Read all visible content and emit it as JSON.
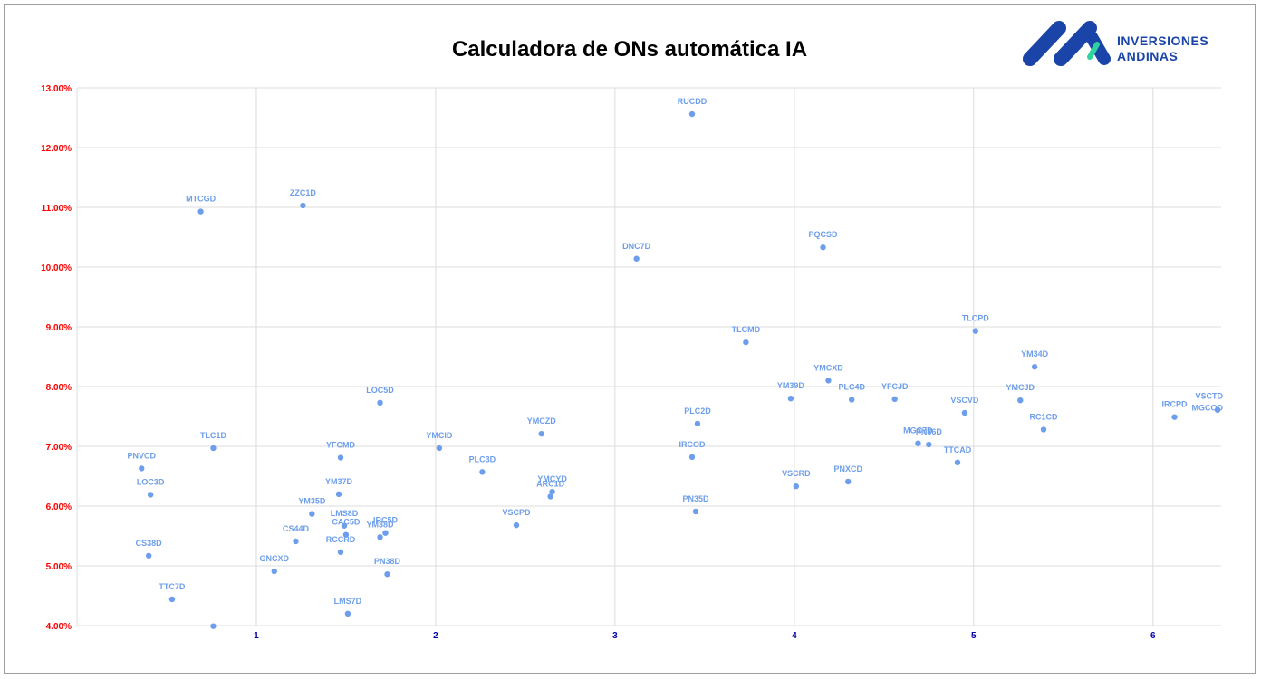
{
  "brand": {
    "line1": "INVERSIONES",
    "line2": "ANDINAS",
    "primary_color": "#1a44a8",
    "accent_color": "#2ed3a0",
    "logo_icon": "inversiones-andinas-logo-icon"
  },
  "colors": {
    "point": "#6d9eeb",
    "label": "#6d9eeb",
    "ytick": "#ff0000",
    "xtick": "#0000aa",
    "grid": "#dcdcdc"
  },
  "chart_data": {
    "type": "scatter",
    "title": "Calculadora de ONs automática IA",
    "xlabel": "",
    "ylabel": "",
    "xlim": [
      0,
      6.38
    ],
    "ylim": [
      0.04,
      0.13
    ],
    "grid": true,
    "legend": "none",
    "x_ticks": [
      {
        "value": 1,
        "label": "1"
      },
      {
        "value": 2,
        "label": "2"
      },
      {
        "value": 3,
        "label": "3"
      },
      {
        "value": 4,
        "label": "4"
      },
      {
        "value": 5,
        "label": "5"
      },
      {
        "value": 6,
        "label": "6"
      }
    ],
    "y_ticks": [
      {
        "value": 0.04,
        "label": "4.00%"
      },
      {
        "value": 0.05,
        "label": "5.00%"
      },
      {
        "value": 0.06,
        "label": "6.00%"
      },
      {
        "value": 0.07,
        "label": "7.00%"
      },
      {
        "value": 0.08,
        "label": "8.00%"
      },
      {
        "value": 0.09,
        "label": "9.00%"
      },
      {
        "value": 0.1,
        "label": "10.00%"
      },
      {
        "value": 0.11,
        "label": "11.00%"
      },
      {
        "value": 0.12,
        "label": "12.00%"
      },
      {
        "value": 0.13,
        "label": "13.00%"
      }
    ],
    "points": [
      {
        "label": "RUCDD",
        "x": 3.43,
        "y": 0.1256
      },
      {
        "label": "MTCGD",
        "x": 0.69,
        "y": 0.1093
      },
      {
        "label": "ZZC1D",
        "x": 1.26,
        "y": 0.1103
      },
      {
        "label": "DNC7D",
        "x": 3.12,
        "y": 0.1014
      },
      {
        "label": "PQCSD",
        "x": 4.16,
        "y": 0.1033
      },
      {
        "label": "TLCPD",
        "x": 5.01,
        "y": 0.0893
      },
      {
        "label": "TLCMD",
        "x": 3.73,
        "y": 0.0874
      },
      {
        "label": "YM34D",
        "x": 5.34,
        "y": 0.0833
      },
      {
        "label": "YMCXD",
        "x": 4.19,
        "y": 0.081
      },
      {
        "label": "YM39D",
        "x": 3.98,
        "y": 0.078
      },
      {
        "label": "PLC4D",
        "x": 4.32,
        "y": 0.0778
      },
      {
        "label": "YFCJD",
        "x": 4.56,
        "y": 0.0779
      },
      {
        "label": "YMCJD",
        "x": 5.26,
        "y": 0.0777
      },
      {
        "label": "VSCVD",
        "x": 4.95,
        "y": 0.0756
      },
      {
        "label": "VSCTD",
        "x": 6.36,
        "y": 0.0761
      },
      {
        "label": "MGCOD",
        "x": 6.36,
        "y": 0.0761
      },
      {
        "label": "IRCPD",
        "x": 6.12,
        "y": 0.0749
      },
      {
        "label": "RC1CD",
        "x": 5.39,
        "y": 0.0728
      },
      {
        "label": "LOC5D",
        "x": 1.69,
        "y": 0.0773
      },
      {
        "label": "PLC2D",
        "x": 3.46,
        "y": 0.0738
      },
      {
        "label": "YMCZD",
        "x": 2.59,
        "y": 0.0721
      },
      {
        "label": "MGC7D",
        "x": 4.69,
        "y": 0.0705
      },
      {
        "label": "PN36D",
        "x": 4.75,
        "y": 0.0703
      },
      {
        "label": "TTCAD",
        "x": 4.91,
        "y": 0.0673
      },
      {
        "label": "IRCOD",
        "x": 3.43,
        "y": 0.0682
      },
      {
        "label": "YMCID",
        "x": 2.02,
        "y": 0.0697
      },
      {
        "label": "PNVCD",
        "x": 0.36,
        "y": 0.0663
      },
      {
        "label": "TLC1D",
        "x": 0.76,
        "y": 0.0697
      },
      {
        "label": "YFCMD",
        "x": 1.47,
        "y": 0.0681
      },
      {
        "label": "PLC3D",
        "x": 2.26,
        "y": 0.0657
      },
      {
        "label": "PNXCD",
        "x": 4.3,
        "y": 0.0641
      },
      {
        "label": "VSCRD",
        "x": 4.01,
        "y": 0.0633
      },
      {
        "label": "ARC1D",
        "x": 2.64,
        "y": 0.0616
      },
      {
        "label": "YMCYD",
        "x": 2.65,
        "y": 0.0624
      },
      {
        "label": "LOC3D",
        "x": 0.41,
        "y": 0.0619
      },
      {
        "label": "YM37D",
        "x": 1.46,
        "y": 0.062
      },
      {
        "label": "PN35D",
        "x": 3.45,
        "y": 0.0591
      },
      {
        "label": "YM35D",
        "x": 1.31,
        "y": 0.0587
      },
      {
        "label": "VSCPD",
        "x": 2.45,
        "y": 0.0568
      },
      {
        "label": "LMS8D",
        "x": 1.49,
        "y": 0.0567
      },
      {
        "label": "CAC5D",
        "x": 1.5,
        "y": 0.0552
      },
      {
        "label": "IRC5D",
        "x": 1.72,
        "y": 0.0555
      },
      {
        "label": "YM38D",
        "x": 1.69,
        "y": 0.0548
      },
      {
        "label": "CS44D",
        "x": 1.22,
        "y": 0.0541
      },
      {
        "label": "RCCRD",
        "x": 1.47,
        "y": 0.0523
      },
      {
        "label": "CS38D",
        "x": 0.4,
        "y": 0.0517
      },
      {
        "label": "GNCXD",
        "x": 1.1,
        "y": 0.0491
      },
      {
        "label": "PN38D",
        "x": 1.73,
        "y": 0.0486
      },
      {
        "label": "TTC7D",
        "x": 0.53,
        "y": 0.0444
      },
      {
        "label": "LMS7D",
        "x": 1.51,
        "y": 0.042
      },
      {
        "label": "",
        "x": 0.76,
        "y": 0.0399
      }
    ]
  }
}
